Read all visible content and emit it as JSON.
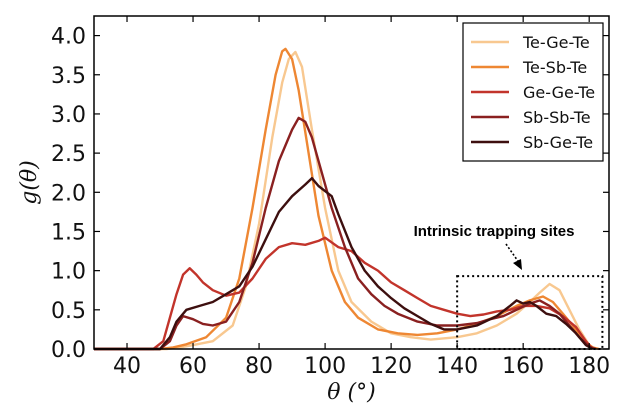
{
  "chart_data": {
    "type": "line",
    "xlabel": "θ (°)",
    "ylabel": "g(θ)",
    "xlim": [
      30,
      186
    ],
    "ylim": [
      0,
      4.25
    ],
    "x_ticks": [
      "40",
      "60",
      "80",
      "100",
      "120",
      "140",
      "160",
      "180"
    ],
    "y_ticks": [
      "0.0",
      "0.5",
      "1.0",
      "1.5",
      "2.0",
      "2.5",
      "3.0",
      "3.5",
      "4.0"
    ],
    "legend_position": "top-right",
    "grid": false,
    "series": [
      {
        "name": "Te-Ge-Te",
        "color": "#f8c890",
        "points": [
          [
            30,
            0
          ],
          [
            52,
            0
          ],
          [
            56,
            0.02
          ],
          [
            60,
            0.05
          ],
          [
            66,
            0.1
          ],
          [
            72,
            0.3
          ],
          [
            76,
            0.8
          ],
          [
            80,
            1.6
          ],
          [
            84,
            2.7
          ],
          [
            87,
            3.4
          ],
          [
            89,
            3.7
          ],
          [
            91,
            3.79
          ],
          [
            93,
            3.6
          ],
          [
            96,
            2.8
          ],
          [
            100,
            1.8
          ],
          [
            104,
            1.0
          ],
          [
            108,
            0.6
          ],
          [
            114,
            0.35
          ],
          [
            120,
            0.2
          ],
          [
            126,
            0.15
          ],
          [
            132,
            0.12
          ],
          [
            140,
            0.15
          ],
          [
            146,
            0.2
          ],
          [
            152,
            0.3
          ],
          [
            158,
            0.45
          ],
          [
            162,
            0.6
          ],
          [
            165,
            0.72
          ],
          [
            168,
            0.83
          ],
          [
            171,
            0.75
          ],
          [
            174,
            0.5
          ],
          [
            177,
            0.25
          ],
          [
            180,
            0.05
          ],
          [
            182,
            0
          ]
        ]
      },
      {
        "name": "Te-Sb-Te",
        "color": "#ee8733",
        "points": [
          [
            30,
            0
          ],
          [
            50,
            0
          ],
          [
            54,
            0.02
          ],
          [
            58,
            0.06
          ],
          [
            64,
            0.15
          ],
          [
            70,
            0.4
          ],
          [
            74,
            0.9
          ],
          [
            78,
            1.8
          ],
          [
            82,
            2.8
          ],
          [
            85,
            3.5
          ],
          [
            87,
            3.8
          ],
          [
            88,
            3.83
          ],
          [
            90,
            3.7
          ],
          [
            92,
            3.3
          ],
          [
            95,
            2.5
          ],
          [
            98,
            1.7
          ],
          [
            102,
            1.0
          ],
          [
            106,
            0.6
          ],
          [
            110,
            0.4
          ],
          [
            116,
            0.25
          ],
          [
            122,
            0.2
          ],
          [
            128,
            0.18
          ],
          [
            134,
            0.2
          ],
          [
            140,
            0.25
          ],
          [
            146,
            0.32
          ],
          [
            152,
            0.42
          ],
          [
            158,
            0.55
          ],
          [
            162,
            0.62
          ],
          [
            166,
            0.67
          ],
          [
            169,
            0.6
          ],
          [
            172,
            0.45
          ],
          [
            175,
            0.3
          ],
          [
            178,
            0.12
          ],
          [
            181,
            0.02
          ],
          [
            183,
            0
          ]
        ]
      },
      {
        "name": "Ge-Ge-Te",
        "color": "#c2342b",
        "points": [
          [
            30,
            0
          ],
          [
            48,
            0
          ],
          [
            51,
            0.1
          ],
          [
            53,
            0.4
          ],
          [
            55,
            0.7
          ],
          [
            57,
            0.95
          ],
          [
            59,
            1.03
          ],
          [
            61,
            0.95
          ],
          [
            63,
            0.85
          ],
          [
            66,
            0.75
          ],
          [
            70,
            0.68
          ],
          [
            74,
            0.72
          ],
          [
            78,
            0.9
          ],
          [
            82,
            1.15
          ],
          [
            86,
            1.3
          ],
          [
            90,
            1.35
          ],
          [
            94,
            1.33
          ],
          [
            98,
            1.38
          ],
          [
            100,
            1.42
          ],
          [
            104,
            1.3
          ],
          [
            108,
            1.25
          ],
          [
            112,
            1.1
          ],
          [
            116,
            1.0
          ],
          [
            120,
            0.85
          ],
          [
            124,
            0.75
          ],
          [
            128,
            0.65
          ],
          [
            132,
            0.55
          ],
          [
            136,
            0.5
          ],
          [
            140,
            0.45
          ],
          [
            144,
            0.42
          ],
          [
            148,
            0.44
          ],
          [
            152,
            0.48
          ],
          [
            156,
            0.5
          ],
          [
            160,
            0.55
          ],
          [
            164,
            0.55
          ],
          [
            168,
            0.52
          ],
          [
            172,
            0.42
          ],
          [
            176,
            0.28
          ],
          [
            179,
            0.1
          ],
          [
            181,
            0
          ]
        ]
      },
      {
        "name": "Sb-Sb-Te",
        "color": "#8a2020",
        "points": [
          [
            30,
            0
          ],
          [
            50,
            0
          ],
          [
            53,
            0.1
          ],
          [
            55,
            0.3
          ],
          [
            57,
            0.42
          ],
          [
            60,
            0.38
          ],
          [
            63,
            0.32
          ],
          [
            66,
            0.3
          ],
          [
            70,
            0.35
          ],
          [
            74,
            0.6
          ],
          [
            78,
            1.1
          ],
          [
            82,
            1.8
          ],
          [
            86,
            2.4
          ],
          [
            90,
            2.8
          ],
          [
            92,
            2.95
          ],
          [
            94,
            2.9
          ],
          [
            96,
            2.7
          ],
          [
            98,
            2.4
          ],
          [
            102,
            1.8
          ],
          [
            106,
            1.3
          ],
          [
            110,
            0.9
          ],
          [
            114,
            0.7
          ],
          [
            118,
            0.55
          ],
          [
            122,
            0.45
          ],
          [
            128,
            0.35
          ],
          [
            134,
            0.3
          ],
          [
            140,
            0.3
          ],
          [
            146,
            0.33
          ],
          [
            150,
            0.38
          ],
          [
            154,
            0.42
          ],
          [
            158,
            0.5
          ],
          [
            162,
            0.58
          ],
          [
            165,
            0.62
          ],
          [
            168,
            0.55
          ],
          [
            171,
            0.45
          ],
          [
            174,
            0.3
          ],
          [
            177,
            0.15
          ],
          [
            180,
            0.03
          ],
          [
            182,
            0
          ]
        ]
      },
      {
        "name": "Sb-Ge-Te",
        "color": "#3d0f0f",
        "points": [
          [
            30,
            0
          ],
          [
            50,
            0
          ],
          [
            53,
            0.15
          ],
          [
            55,
            0.35
          ],
          [
            58,
            0.5
          ],
          [
            62,
            0.55
          ],
          [
            66,
            0.6
          ],
          [
            70,
            0.7
          ],
          [
            74,
            0.8
          ],
          [
            78,
            1.05
          ],
          [
            82,
            1.4
          ],
          [
            86,
            1.75
          ],
          [
            90,
            1.95
          ],
          [
            94,
            2.1
          ],
          [
            96,
            2.18
          ],
          [
            98,
            2.08
          ],
          [
            102,
            1.95
          ],
          [
            104,
            1.72
          ],
          [
            108,
            1.3
          ],
          [
            112,
            1.0
          ],
          [
            116,
            0.8
          ],
          [
            120,
            0.65
          ],
          [
            124,
            0.52
          ],
          [
            128,
            0.42
          ],
          [
            132,
            0.32
          ],
          [
            136,
            0.25
          ],
          [
            140,
            0.25
          ],
          [
            146,
            0.3
          ],
          [
            152,
            0.42
          ],
          [
            156,
            0.55
          ],
          [
            158,
            0.62
          ],
          [
            160,
            0.58
          ],
          [
            162,
            0.6
          ],
          [
            164,
            0.55
          ],
          [
            167,
            0.45
          ],
          [
            170,
            0.42
          ],
          [
            173,
            0.32
          ],
          [
            176,
            0.2
          ],
          [
            179,
            0.05
          ],
          [
            181,
            0
          ]
        ]
      }
    ],
    "annotation": {
      "text": "Intrinsic trapping sites",
      "box_x": [
        140,
        184
      ],
      "box_y": [
        0,
        0.93
      ]
    }
  }
}
